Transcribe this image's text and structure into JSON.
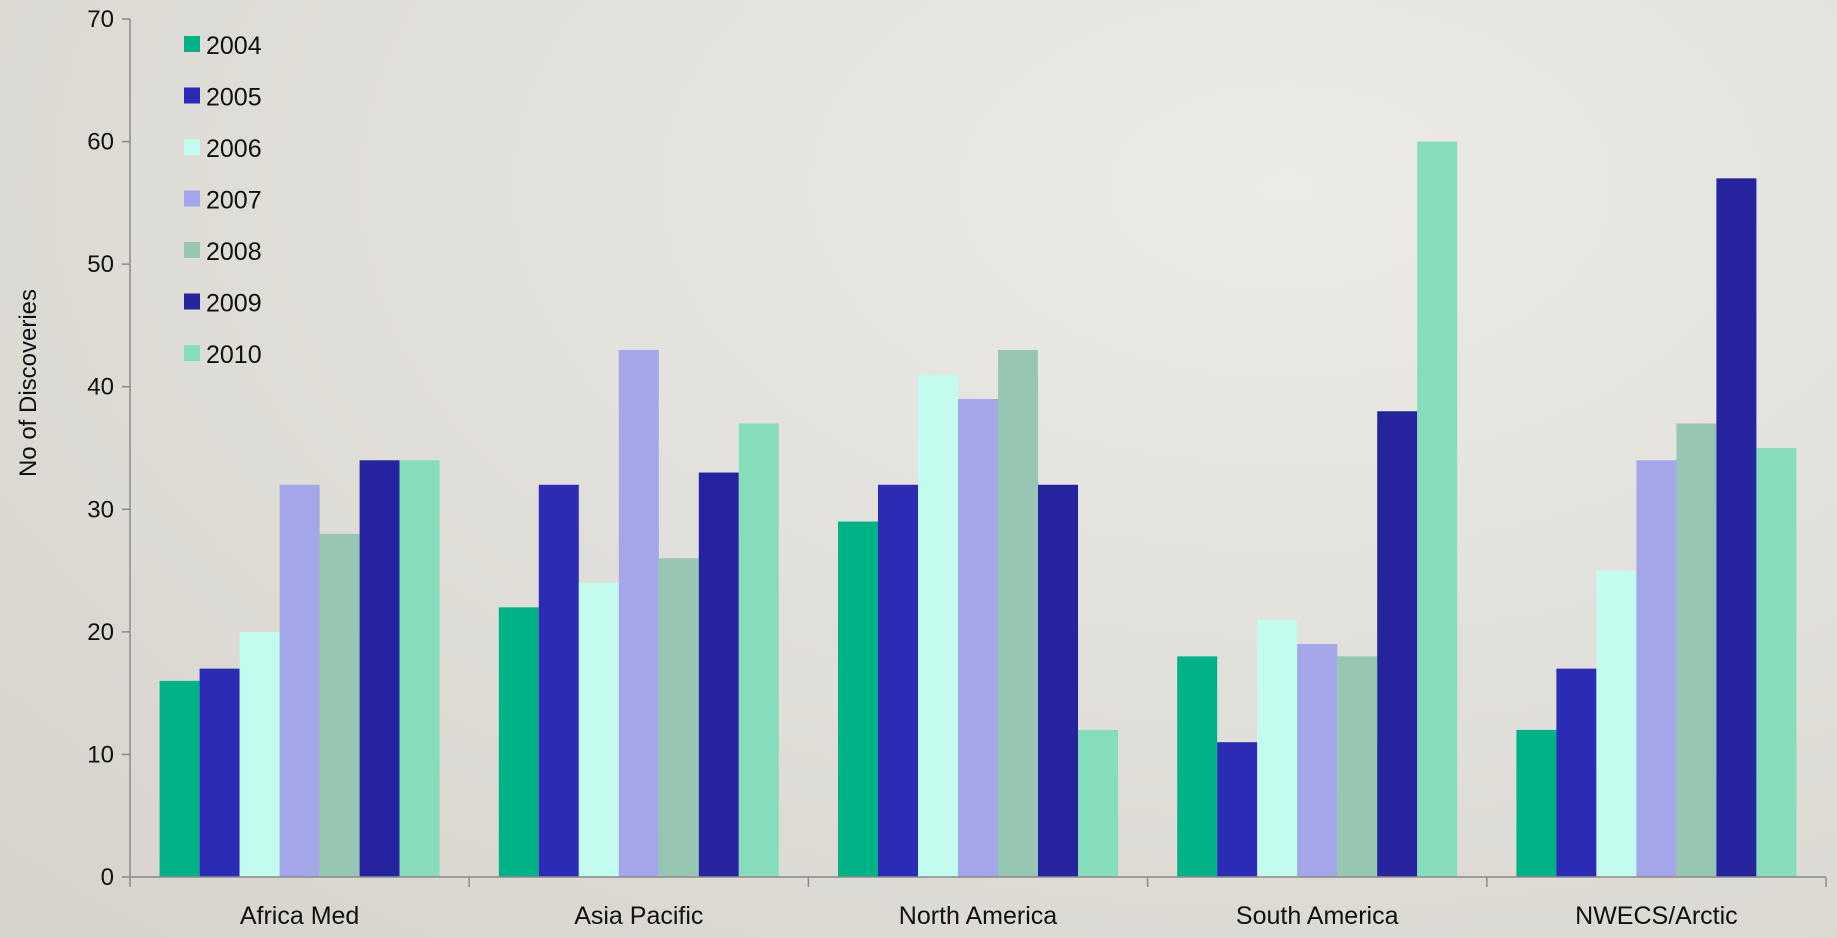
{
  "chart_data": {
    "type": "bar",
    "title": "",
    "xlabel": "",
    "ylabel": "No of Discoveries",
    "ylim": [
      0,
      70
    ],
    "yticks": [
      0,
      10,
      20,
      30,
      40,
      50,
      60,
      70
    ],
    "grid": false,
    "legend_position": "top-left",
    "categories": [
      "Africa Med",
      "Asia Pacific",
      "North America",
      "South America",
      "NWECS/Arctic"
    ],
    "series": [
      {
        "name": "2004",
        "color": "#00b386",
        "values": [
          16,
          22,
          29,
          18,
          12
        ]
      },
      {
        "name": "2005",
        "color": "#2b2bb5",
        "values": [
          17,
          32,
          32,
          11,
          17
        ]
      },
      {
        "name": "2006",
        "color": "#c4fbef",
        "values": [
          20,
          24,
          41,
          21,
          25
        ]
      },
      {
        "name": "2007",
        "color": "#a3a6e8",
        "values": [
          32,
          43,
          39,
          19,
          34
        ]
      },
      {
        "name": "2008",
        "color": "#97c7b3",
        "values": [
          28,
          26,
          43,
          18,
          37
        ]
      },
      {
        "name": "2009",
        "color": "#25249e",
        "values": [
          34,
          33,
          32,
          38,
          57
        ]
      },
      {
        "name": "2010",
        "color": "#86ddbb",
        "values": [
          34,
          37,
          12,
          60,
          35
        ]
      }
    ]
  }
}
